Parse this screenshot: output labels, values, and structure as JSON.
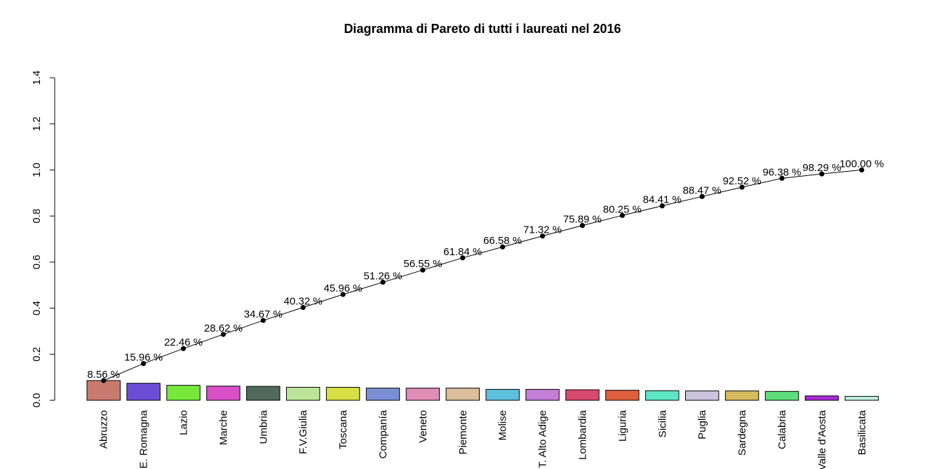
{
  "chart_data": {
    "type": "bar",
    "title": "Diagramma di Pareto di tutti i laureati nel 2016",
    "xlabel": "",
    "ylabel": "",
    "ylim": [
      0,
      1.4
    ],
    "yticks": [
      "0.0",
      "0.2",
      "0.4",
      "0.6",
      "0.8",
      "1.0",
      "1.2",
      "1.4"
    ],
    "grid": false,
    "categories": [
      "Abruzzo",
      "E. Romagna",
      "Lazio",
      "Marche",
      "Umbria",
      "F.V.Giulia",
      "Toscana",
      "Companía",
      "Veneto",
      "Piemonte",
      "Molise",
      "T. Alto Adige",
      "Lombardia",
      "Liguria",
      "Sicilia",
      "Puglia",
      "Sardegna",
      "Calabria",
      "Valle d'Aosta",
      "Basilicata"
    ],
    "values": [
      0.0856,
      0.074,
      0.065,
      0.0616,
      0.0605,
      0.0565,
      0.0564,
      0.053,
      0.0529,
      0.0529,
      0.0474,
      0.0474,
      0.0457,
      0.0436,
      0.0416,
      0.0406,
      0.0405,
      0.0386,
      0.0191,
      0.0171
    ],
    "colors": [
      "#c97a6e",
      "#6a4fd6",
      "#76e83c",
      "#d94fc6",
      "#516a5c",
      "#bde59a",
      "#d6e044",
      "#7b8ed4",
      "#e08db6",
      "#dcbd9c",
      "#5fc0dc",
      "#c57ed6",
      "#d94a6f",
      "#de5f3c",
      "#5fe6c4",
      "#ccc4de",
      "#d6ba5e",
      "#5fdd7c",
      "#a92ad6",
      "#bfeee0"
    ],
    "cumulative": {
      "values": [
        0.0856,
        0.1596,
        0.2246,
        0.2862,
        0.3467,
        0.4032,
        0.4596,
        0.5126,
        0.5655,
        0.6184,
        0.6658,
        0.7132,
        0.7589,
        0.8025,
        0.8441,
        0.8847,
        0.9252,
        0.9638,
        0.9829,
        1.0
      ],
      "labels": [
        "8.56 %",
        "15.96 %",
        "22.46 %",
        "28.62 %",
        "34.67 %",
        "40.32 %",
        "45.96 %",
        "51.26 %",
        "56.55 %",
        "61.84 %",
        "66.58 %",
        "71.32 %",
        "75.89 %",
        "80.25 %",
        "84.41 %",
        "88.47 %",
        "92.52 %",
        "96.38 %",
        "98.29 %",
        "100.00 %"
      ]
    }
  }
}
